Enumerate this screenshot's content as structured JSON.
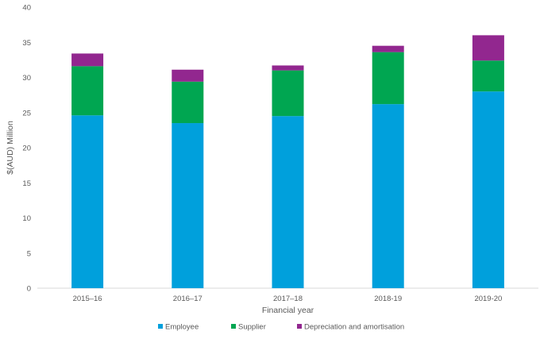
{
  "chart_data": {
    "type": "bar",
    "stacked": true,
    "categories": [
      "2015–16",
      "2016–17",
      "2017–18",
      "2018-19",
      "2019-20"
    ],
    "series": [
      {
        "name": "Employee",
        "color": "#00a0dc",
        "values": [
          24.6,
          23.5,
          24.5,
          26.2,
          28.0
        ]
      },
      {
        "name": "Supplier",
        "color": "#00a651",
        "values": [
          7.0,
          5.9,
          6.5,
          7.4,
          4.4
        ]
      },
      {
        "name": "Depreciation and amortisation",
        "color": "#92278f",
        "values": [
          1.8,
          1.7,
          0.7,
          0.9,
          3.6
        ]
      }
    ],
    "xlabel": "Financial year",
    "ylabel": "$(AUD) Million",
    "ylim": [
      0,
      40
    ],
    "yticks": [
      0,
      5,
      10,
      15,
      20,
      25,
      30,
      35,
      40
    ],
    "grid": false,
    "legend_position": "bottom"
  }
}
